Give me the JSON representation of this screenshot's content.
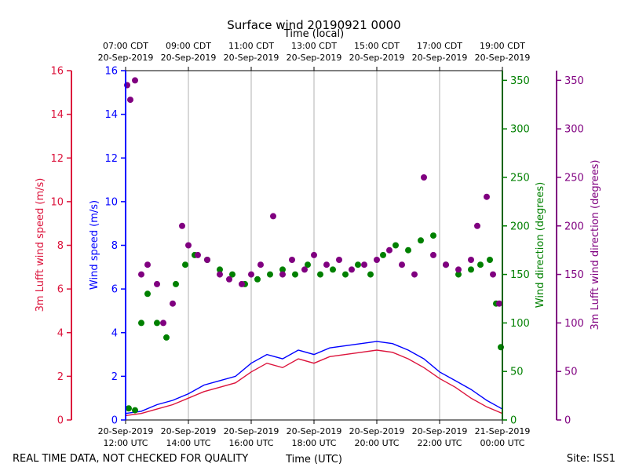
{
  "chart_data": {
    "type": "scatter",
    "title": "Surface wind 20190921 0000",
    "top_xlabel": "Time (local)",
    "xlabel": "Time (UTC)",
    "footer_left": "REAL TIME DATA, NOT CHECKED FOR QUALITY",
    "footer_right": "Site: ISS1",
    "x_range_hours": [
      12,
      24
    ],
    "bottom_ticks": [
      {
        "hour": 12,
        "date": "20-Sep-2019",
        "time": "12:00 UTC"
      },
      {
        "hour": 14,
        "date": "20-Sep-2019",
        "time": "14:00 UTC"
      },
      {
        "hour": 16,
        "date": "20-Sep-2019",
        "time": "16:00 UTC"
      },
      {
        "hour": 18,
        "date": "20-Sep-2019",
        "time": "18:00 UTC"
      },
      {
        "hour": 20,
        "date": "20-Sep-2019",
        "time": "20:00 UTC"
      },
      {
        "hour": 22,
        "date": "20-Sep-2019",
        "time": "22:00 UTC"
      },
      {
        "hour": 24,
        "date": "21-Sep-2019",
        "time": "00:00 UTC"
      }
    ],
    "top_ticks": [
      {
        "hour": 12,
        "time": "07:00 CDT",
        "date": "20-Sep-2019"
      },
      {
        "hour": 14,
        "time": "09:00 CDT",
        "date": "20-Sep-2019"
      },
      {
        "hour": 16,
        "time": "11:00 CDT",
        "date": "20-Sep-2019"
      },
      {
        "hour": 18,
        "time": "13:00 CDT",
        "date": "20-Sep-2019"
      },
      {
        "hour": 20,
        "time": "15:00 CDT",
        "date": "20-Sep-2019"
      },
      {
        "hour": 22,
        "time": "17:00 CDT",
        "date": "20-Sep-2019"
      },
      {
        "hour": 24,
        "time": "19:00 CDT",
        "date": "20-Sep-2019"
      }
    ],
    "axes": {
      "lufft_speed": {
        "label": "3m Lufft wind speed (m/s)",
        "ylim": [
          0,
          16
        ],
        "ticks": [
          0,
          2,
          4,
          6,
          8,
          10,
          12,
          14,
          16
        ],
        "color": "#dc143c"
      },
      "wind_speed": {
        "label": "Wind speed (m/s)",
        "ylim": [
          0,
          16
        ],
        "ticks": [
          0,
          2,
          4,
          6,
          8,
          10,
          12,
          14,
          16
        ],
        "color": "#0000ff"
      },
      "wind_dir": {
        "label": "Wind direction (degrees)",
        "ylim": [
          0,
          360
        ],
        "ticks": [
          0,
          50,
          100,
          150,
          200,
          250,
          300,
          350
        ],
        "color": "#008000"
      },
      "lufft_dir": {
        "label": "3m Lufft wind direction (degrees)",
        "ylim": [
          0,
          360
        ],
        "ticks": [
          0,
          50,
          100,
          150,
          200,
          250,
          300,
          350
        ],
        "color": "#800080"
      }
    },
    "series": [
      {
        "name": "Wind speed (m/s)",
        "axis": "wind_speed",
        "style": "line",
        "color": "#0000ff",
        "x": [
          12.0,
          12.5,
          13.0,
          13.5,
          14.0,
          14.5,
          15.0,
          15.5,
          16.0,
          16.5,
          17.0,
          17.5,
          18.0,
          18.5,
          19.0,
          19.5,
          20.0,
          20.5,
          21.0,
          21.5,
          22.0,
          22.5,
          23.0,
          23.5,
          24.0
        ],
        "y": [
          0.3,
          0.4,
          0.7,
          0.9,
          1.2,
          1.6,
          1.8,
          2.0,
          2.6,
          3.0,
          2.8,
          3.2,
          3.0,
          3.3,
          3.4,
          3.5,
          3.6,
          3.5,
          3.2,
          2.8,
          2.2,
          1.8,
          1.4,
          0.9,
          0.5
        ]
      },
      {
        "name": "3m Lufft wind speed (m/s)",
        "axis": "lufft_speed",
        "style": "line",
        "color": "#dc143c",
        "x": [
          12.0,
          12.5,
          13.0,
          13.5,
          14.0,
          14.5,
          15.0,
          15.5,
          16.0,
          16.5,
          17.0,
          17.5,
          18.0,
          18.5,
          19.0,
          19.5,
          20.0,
          20.5,
          21.0,
          21.5,
          22.0,
          22.5,
          23.0,
          23.5,
          24.0
        ],
        "y": [
          0.2,
          0.3,
          0.5,
          0.7,
          1.0,
          1.3,
          1.5,
          1.7,
          2.2,
          2.6,
          2.4,
          2.8,
          2.6,
          2.9,
          3.0,
          3.1,
          3.2,
          3.1,
          2.8,
          2.4,
          1.9,
          1.5,
          1.0,
          0.6,
          0.3
        ]
      },
      {
        "name": "Wind direction (degrees)",
        "axis": "wind_dir",
        "style": "points",
        "color": "#008000",
        "x": [
          12.1,
          12.3,
          12.5,
          12.7,
          13.0,
          13.3,
          13.6,
          13.9,
          14.2,
          14.6,
          15.0,
          15.4,
          15.8,
          16.2,
          16.6,
          17.0,
          17.4,
          17.8,
          18.2,
          18.6,
          19.0,
          19.4,
          19.8,
          20.2,
          20.6,
          21.0,
          21.4,
          21.8,
          22.2,
          22.6,
          23.0,
          23.3,
          23.6,
          23.8,
          23.95
        ],
        "y": [
          12,
          10,
          100,
          130,
          100,
          85,
          140,
          160,
          170,
          165,
          155,
          150,
          140,
          145,
          150,
          155,
          150,
          160,
          150,
          155,
          150,
          160,
          150,
          170,
          180,
          175,
          185,
          190,
          160,
          150,
          155,
          160,
          165,
          120,
          75
        ]
      },
      {
        "name": "3m Lufft wind direction (degrees)",
        "axis": "lufft_dir",
        "style": "points",
        "color": "#800080",
        "x": [
          12.05,
          12.15,
          12.3,
          12.5,
          12.7,
          13.0,
          13.2,
          13.5,
          13.8,
          14.0,
          14.3,
          14.6,
          15.0,
          15.3,
          15.7,
          16.0,
          16.3,
          16.7,
          17.0,
          17.3,
          17.7,
          18.0,
          18.4,
          18.8,
          19.2,
          19.6,
          20.0,
          20.4,
          20.8,
          21.2,
          21.5,
          21.8,
          22.2,
          22.6,
          23.0,
          23.2,
          23.5,
          23.7,
          23.9
        ],
        "y": [
          345,
          330,
          350,
          150,
          160,
          140,
          100,
          120,
          200,
          180,
          170,
          165,
          150,
          145,
          140,
          150,
          160,
          210,
          150,
          165,
          155,
          170,
          160,
          165,
          155,
          160,
          165,
          175,
          160,
          150,
          250,
          170,
          160,
          155,
          165,
          200,
          230,
          150,
          120
        ]
      }
    ]
  }
}
